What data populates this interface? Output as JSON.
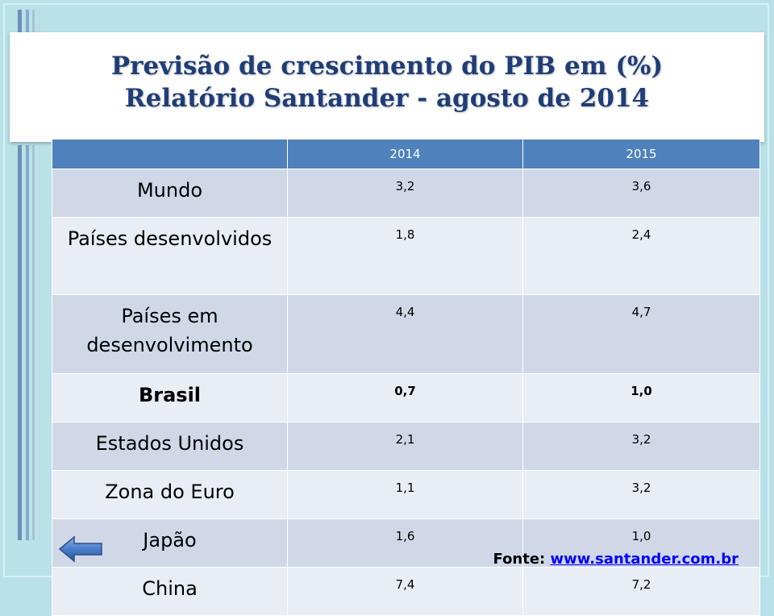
{
  "slide": {
    "title_line1": "Previsão de crescimento  do PIB em (%)",
    "title_line2": "Relatório Santander - agosto de 2014"
  },
  "table": {
    "headers": [
      "",
      "2014",
      "2015"
    ],
    "rows": [
      {
        "label": "Mundo",
        "v2014": "3,2",
        "v2015": "3,6"
      },
      {
        "label": "Países desenvolvidos",
        "v2014": "1,8",
        "v2015": "2,4"
      },
      {
        "label": "Países em desenvolvimento",
        "v2014": "4,4",
        "v2015": "4,7"
      },
      {
        "label": "Brasil",
        "v2014": "0,7",
        "v2015": "1,0"
      },
      {
        "label": "Estados Unidos",
        "v2014": "2,1",
        "v2015": "3,2"
      },
      {
        "label": "Zona do Euro",
        "v2014": "1,1",
        "v2015": "3,2"
      },
      {
        "label": "Japão",
        "v2014": "1,6",
        "v2015": "1,0"
      },
      {
        "label": "China",
        "v2014": "7,4",
        "v2015": "7,2"
      }
    ]
  },
  "footer": {
    "source_label": "Fonte:",
    "source_link": "www.santander.com.br"
  },
  "icons": {
    "back": "back-arrow-icon"
  },
  "colors": {
    "header_bg": "#4f81bd",
    "row_odd": "#d0d8e8",
    "row_even": "#e9edf4",
    "title_text": "#1f3d78",
    "background": "#b9e1e9"
  }
}
